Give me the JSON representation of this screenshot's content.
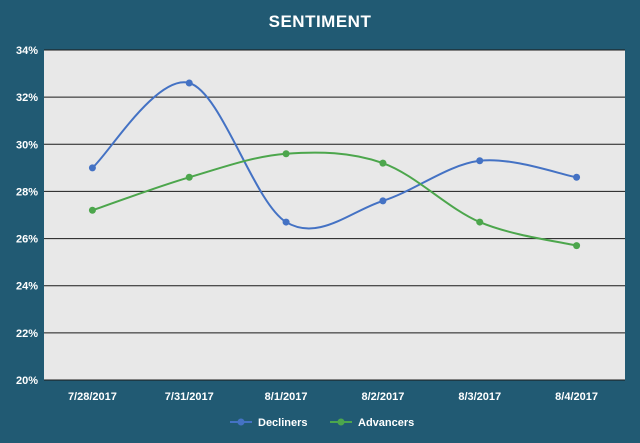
{
  "chart_data": {
    "type": "line",
    "title": "SENTIMENT",
    "categories": [
      "7/28/2017",
      "7/31/2017",
      "8/1/2017",
      "8/2/2017",
      "8/3/2017",
      "8/4/2017"
    ],
    "ylim": [
      20,
      34
    ],
    "yticks": [
      20,
      22,
      24,
      26,
      28,
      30,
      32,
      34
    ],
    "y_tick_labels": [
      "20%",
      "22%",
      "24%",
      "26%",
      "28%",
      "30%",
      "32%",
      "34%"
    ],
    "grid": true,
    "legend_position": "bottom",
    "series": [
      {
        "name": "Decliners",
        "color": "#4472c4",
        "values": [
          29.0,
          32.6,
          26.7,
          27.6,
          29.3,
          28.6
        ]
      },
      {
        "name": "Advancers",
        "color": "#4ca64c",
        "values": [
          27.2,
          28.6,
          29.6,
          29.2,
          26.7,
          25.7
        ]
      }
    ],
    "colors": {
      "background": "#215a73",
      "plot_area": "#e8e8e8",
      "grid": "#1a1a1a",
      "text": "#ffffff"
    }
  }
}
